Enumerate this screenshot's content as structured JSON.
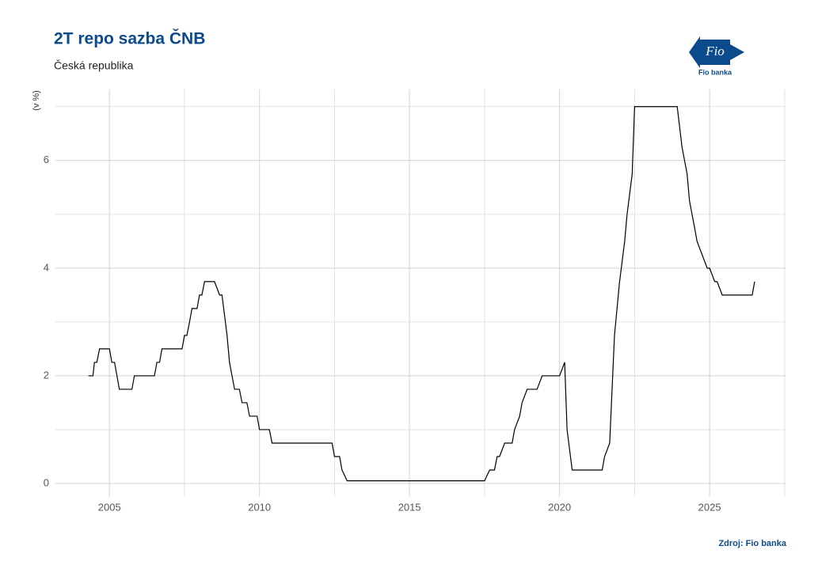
{
  "chart_data": {
    "type": "line",
    "title": "2T repo sazba ČNB",
    "subtitle": "Česká republika",
    "ylabel": "(v %)",
    "source": "Zdroj: Fio banka",
    "logo": {
      "mark": "Fio",
      "name": "Fio banka"
    },
    "x": [
      2004.3,
      2004.45,
      2004.5,
      2004.58,
      2004.67,
      2005.0,
      2005.08,
      2005.17,
      2005.25,
      2005.33,
      2005.75,
      2005.83,
      2006.5,
      2006.58,
      2006.67,
      2006.75,
      2007.42,
      2007.5,
      2007.58,
      2007.67,
      2007.75,
      2007.92,
      2008.0,
      2008.08,
      2008.17,
      2008.5,
      2008.67,
      2008.75,
      2008.92,
      2009.0,
      2009.17,
      2009.33,
      2009.42,
      2009.58,
      2009.67,
      2009.92,
      2010.0,
      2010.33,
      2010.42,
      2012.42,
      2012.5,
      2012.67,
      2012.75,
      2012.92,
      2017.5,
      2017.67,
      2017.83,
      2017.92,
      2018.0,
      2018.17,
      2018.42,
      2018.5,
      2018.67,
      2018.75,
      2018.92,
      2019.25,
      2019.42,
      2020.0,
      2020.17,
      2020.25,
      2020.42,
      2021.42,
      2021.5,
      2021.67,
      2021.83,
      2022.0,
      2022.17,
      2022.25,
      2022.42,
      2022.5,
      2023.92,
      2024.08,
      2024.25,
      2024.33,
      2024.5,
      2024.58,
      2024.75,
      2024.92,
      2025.0,
      2025.17,
      2025.25,
      2025.42,
      2026.42,
      2026.5
    ],
    "series": [
      {
        "name": "2T repo sazba",
        "color": "#000000",
        "values": [
          2.0,
          2.0,
          2.25,
          2.25,
          2.5,
          2.5,
          2.25,
          2.25,
          2.0,
          1.75,
          1.75,
          2.0,
          2.0,
          2.25,
          2.25,
          2.5,
          2.5,
          2.75,
          2.75,
          3.0,
          3.25,
          3.25,
          3.5,
          3.5,
          3.75,
          3.75,
          3.5,
          3.5,
          2.75,
          2.25,
          1.75,
          1.75,
          1.5,
          1.5,
          1.25,
          1.25,
          1.0,
          1.0,
          0.75,
          0.75,
          0.5,
          0.5,
          0.25,
          0.05,
          0.05,
          0.25,
          0.25,
          0.5,
          0.5,
          0.75,
          0.75,
          1.0,
          1.25,
          1.5,
          1.75,
          1.75,
          2.0,
          2.0,
          2.25,
          1.0,
          0.25,
          0.25,
          0.5,
          0.75,
          2.75,
          3.75,
          4.5,
          5.0,
          5.75,
          7.0,
          7.0,
          6.25,
          5.75,
          5.25,
          4.75,
          4.5,
          4.25,
          4.0,
          4.0,
          3.75,
          3.75,
          3.5,
          3.5,
          3.75
        ]
      }
    ],
    "xlim": [
      2003.2,
      2027.53
    ],
    "ylim": [
      -0.25,
      7.32
    ],
    "xticks": [
      2005,
      2010,
      2015,
      2020,
      2025
    ],
    "yticks": [
      0,
      2,
      4,
      6
    ],
    "xticks_minor": [
      2007.5,
      2012.5,
      2017.5,
      2022.5,
      2027.5
    ],
    "yticks_minor": [
      1,
      3,
      5,
      7
    ],
    "grid": true
  }
}
